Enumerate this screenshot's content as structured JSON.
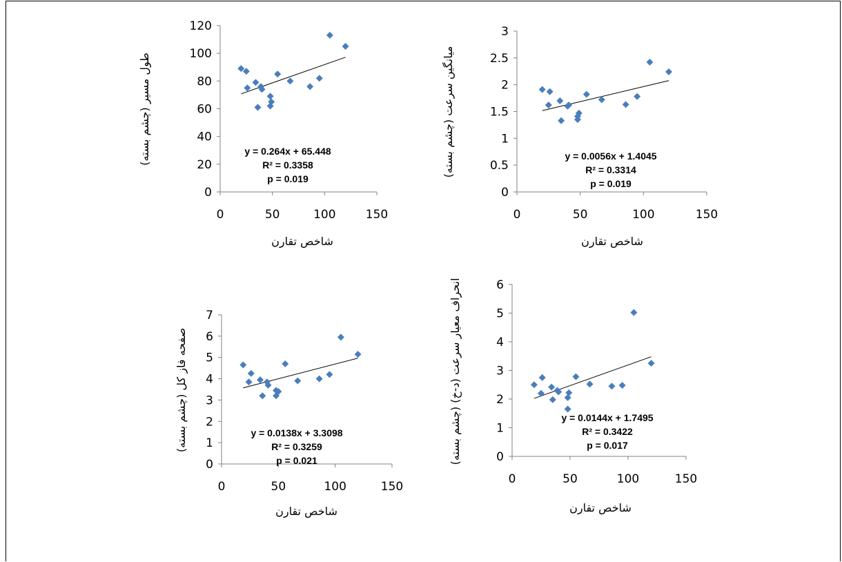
{
  "chart_data": [
    {
      "type": "scatter",
      "xlabel": "شاخص تقارن",
      "ylabel": "طول مسیر (چشم بسته)",
      "xlim": [
        0,
        150
      ],
      "ylim": [
        0,
        120
      ],
      "xticks": [
        0,
        50,
        100,
        150
      ],
      "yticks": [
        0,
        20,
        40,
        60,
        80,
        100,
        120
      ],
      "x": [
        20,
        25,
        26,
        34,
        36,
        39,
        40,
        48,
        48,
        49,
        55,
        67,
        86,
        95,
        105,
        120
      ],
      "y": [
        89,
        87,
        75,
        79,
        61,
        76,
        74,
        69,
        62,
        65,
        85,
        80,
        76,
        82,
        113,
        105
      ],
      "trendline": {
        "slope": 0.264,
        "intercept": 65.448
      },
      "annotation": [
        "y = 0.264x + 65.448",
        "R² = 0.3358",
        "p = 0.019"
      ]
    },
    {
      "type": "scatter",
      "xlabel": "شاخص تقارن",
      "ylabel": "میانگین سرعت (چشم بسته)",
      "xlim": [
        0,
        150
      ],
      "ylim": [
        0,
        3
      ],
      "xticks": [
        0,
        50,
        100,
        150
      ],
      "yticks": [
        0,
        0.5,
        1,
        1.5,
        2,
        2.5,
        3
      ],
      "x": [
        20,
        25,
        26,
        34,
        35,
        40,
        41,
        48,
        48,
        49,
        55,
        67,
        86,
        95,
        105,
        120
      ],
      "y": [
        1.91,
        1.62,
        1.87,
        1.7,
        1.33,
        1.6,
        1.62,
        1.35,
        1.41,
        1.47,
        1.82,
        1.72,
        1.63,
        1.78,
        2.42,
        2.24
      ],
      "trendline": {
        "slope": 0.0056,
        "intercept": 1.4045
      },
      "annotation": [
        "y = 0.0056x + 1.4045",
        "R² = 0.3314",
        "p = 0.019"
      ]
    },
    {
      "type": "scatter",
      "xlabel": "شاخص تقارن",
      "ylabel": "صفحه فاز کل (چشم بسته)",
      "xlim": [
        0,
        150
      ],
      "ylim": [
        0,
        7
      ],
      "xticks": [
        0,
        50,
        100,
        150
      ],
      "yticks": [
        0,
        1,
        2,
        3,
        4,
        5,
        6,
        7
      ],
      "x": [
        19,
        24,
        26,
        34,
        36,
        40,
        41,
        48,
        48,
        50,
        56,
        67,
        86,
        95,
        105,
        120
      ],
      "y": [
        4.65,
        3.85,
        4.25,
        3.95,
        3.2,
        3.85,
        3.7,
        3.45,
        3.2,
        3.4,
        4.7,
        3.9,
        4.0,
        4.2,
        5.95,
        5.15
      ],
      "trendline": {
        "slope": 0.0138,
        "intercept": 3.3098
      },
      "annotation": [
        "y = 0.0138x + 3.3098",
        "R² = 0.3259",
        "p = 0.021"
      ]
    },
    {
      "type": "scatter",
      "xlabel": "شاخص تقارن",
      "ylabel": "انحراف معیار سرعت (د-خ) (چشم بسته)",
      "xlim": [
        0,
        150
      ],
      "ylim": [
        0,
        6
      ],
      "xticks": [
        0,
        50,
        100,
        150
      ],
      "yticks": [
        0,
        1,
        2,
        3,
        4,
        5,
        6
      ],
      "x": [
        19,
        25,
        26,
        34,
        35,
        39,
        40,
        48,
        48,
        49,
        55,
        67,
        86,
        95,
        105,
        120
      ],
      "y": [
        2.5,
        2.2,
        2.75,
        2.42,
        1.98,
        2.3,
        2.25,
        1.65,
        2.05,
        2.22,
        2.78,
        2.52,
        2.45,
        2.48,
        5.02,
        3.25
      ],
      "trendline": {
        "slope": 0.0144,
        "intercept": 1.7495
      },
      "annotation": [
        "y = 0.0144x + 1.7495",
        "R² = 0.3422",
        "p = 0.017"
      ]
    }
  ],
  "colors": {
    "marker": "#4a7ebb",
    "trendline": "#000000",
    "axis": "#808080"
  }
}
